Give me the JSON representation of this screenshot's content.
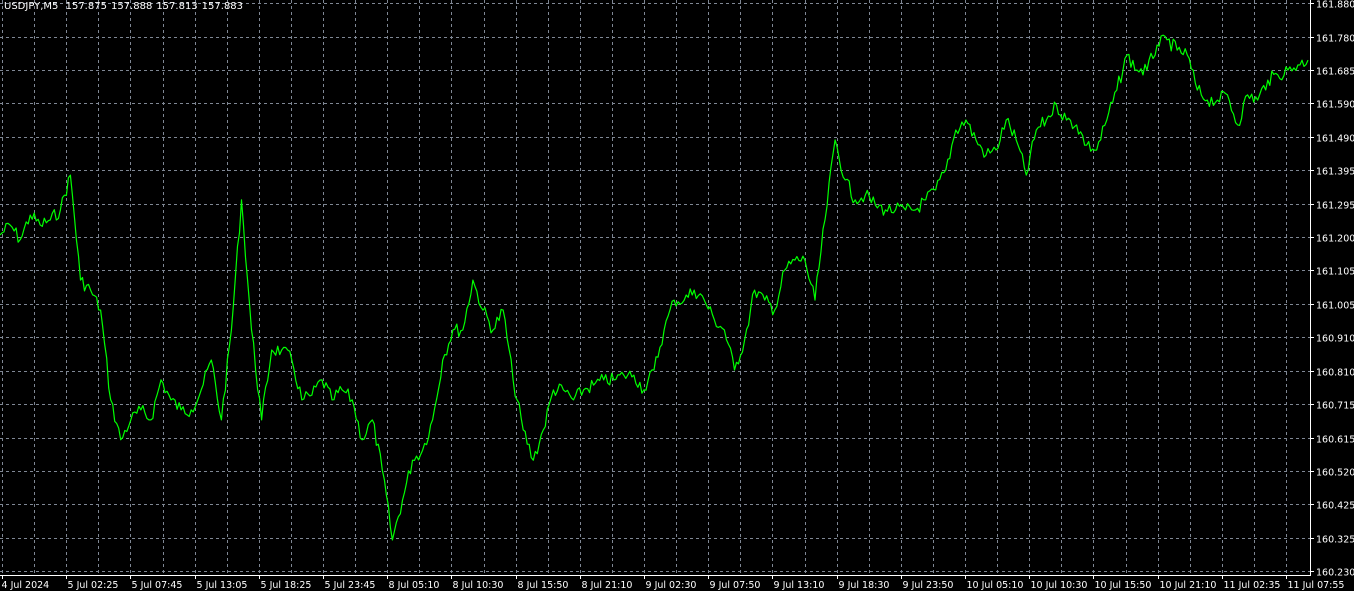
{
  "header": {
    "symbol": "USDJPY,M5",
    "open": "157.875",
    "high": "157.888",
    "low": "157.813",
    "close": "157.883"
  },
  "colors": {
    "background": "#000000",
    "line": "#00ff00",
    "grid": "#7f8794",
    "axis": "#ffffff"
  },
  "chart_data": {
    "type": "line",
    "title": "USDJPY,M5",
    "grid": true,
    "ylim": [
      160.23,
      161.88
    ],
    "y_ticks": [
      "161.880",
      "161.780",
      "161.685",
      "161.590",
      "161.490",
      "161.395",
      "161.295",
      "161.200",
      "161.105",
      "161.005",
      "160.910",
      "160.810",
      "160.715",
      "160.615",
      "160.520",
      "160.425",
      "160.325",
      "160.230"
    ],
    "x_ticks": [
      "4 Jul 2024",
      "5 Jul 02:25",
      "5 Jul 07:45",
      "5 Jul 13:05",
      "5 Jul 18:25",
      "5 Jul 23:45",
      "8 Jul 05:10",
      "8 Jul 10:30",
      "8 Jul 15:50",
      "8 Jul 21:10",
      "9 Jul 02:30",
      "9 Jul 07:50",
      "9 Jul 13:10",
      "9 Jul 18:30",
      "9 Jul 23:50",
      "10 Jul 05:10",
      "10 Jul 10:30",
      "10 Jul 15:50",
      "10 Jul 21:10",
      "11 Jul 02:35",
      "11 Jul 07:55"
    ],
    "series": [
      {
        "values": [
          161.206,
          161.235,
          161.192,
          161.264,
          161.235,
          161.25,
          161.279,
          161.38,
          161.075,
          161.046,
          160.988,
          160.727,
          160.611,
          160.669,
          160.698,
          160.669,
          160.785,
          160.727,
          160.698,
          160.698,
          160.756,
          160.843,
          160.669,
          160.93,
          161.308,
          160.93,
          160.669,
          160.872,
          160.872,
          160.843,
          160.727,
          160.741,
          160.785,
          160.727,
          160.756,
          160.727,
          160.611,
          160.669,
          160.523,
          160.32,
          160.436,
          160.552,
          160.581,
          160.669,
          160.843,
          160.93,
          160.93,
          161.075,
          160.988,
          160.93,
          160.988,
          160.785,
          160.64,
          160.552,
          160.64,
          160.756,
          160.756,
          160.727,
          160.756,
          160.77,
          160.785,
          160.785,
          160.799,
          160.799,
          160.756,
          160.814,
          160.93,
          161.017,
          161.017,
          161.046,
          161.017,
          160.959,
          160.93,
          160.814,
          160.901,
          161.046,
          161.017,
          160.988,
          161.104,
          161.133,
          161.133,
          161.017,
          161.25,
          161.482,
          161.366,
          161.308,
          161.322,
          161.293,
          161.279,
          161.279,
          161.279,
          161.279,
          161.308,
          161.337,
          161.395,
          161.511,
          161.54,
          161.482,
          161.438,
          161.453,
          161.54,
          161.482,
          161.38,
          161.511,
          161.54,
          161.584,
          161.54,
          161.526,
          161.467,
          161.453,
          161.54,
          161.627,
          161.729,
          161.685,
          161.685,
          161.758,
          161.773,
          161.743,
          161.729,
          161.627,
          161.598,
          161.598,
          161.613,
          161.526,
          161.613,
          161.598,
          161.656,
          161.671,
          161.685,
          161.7,
          161.714
        ]
      }
    ]
  }
}
